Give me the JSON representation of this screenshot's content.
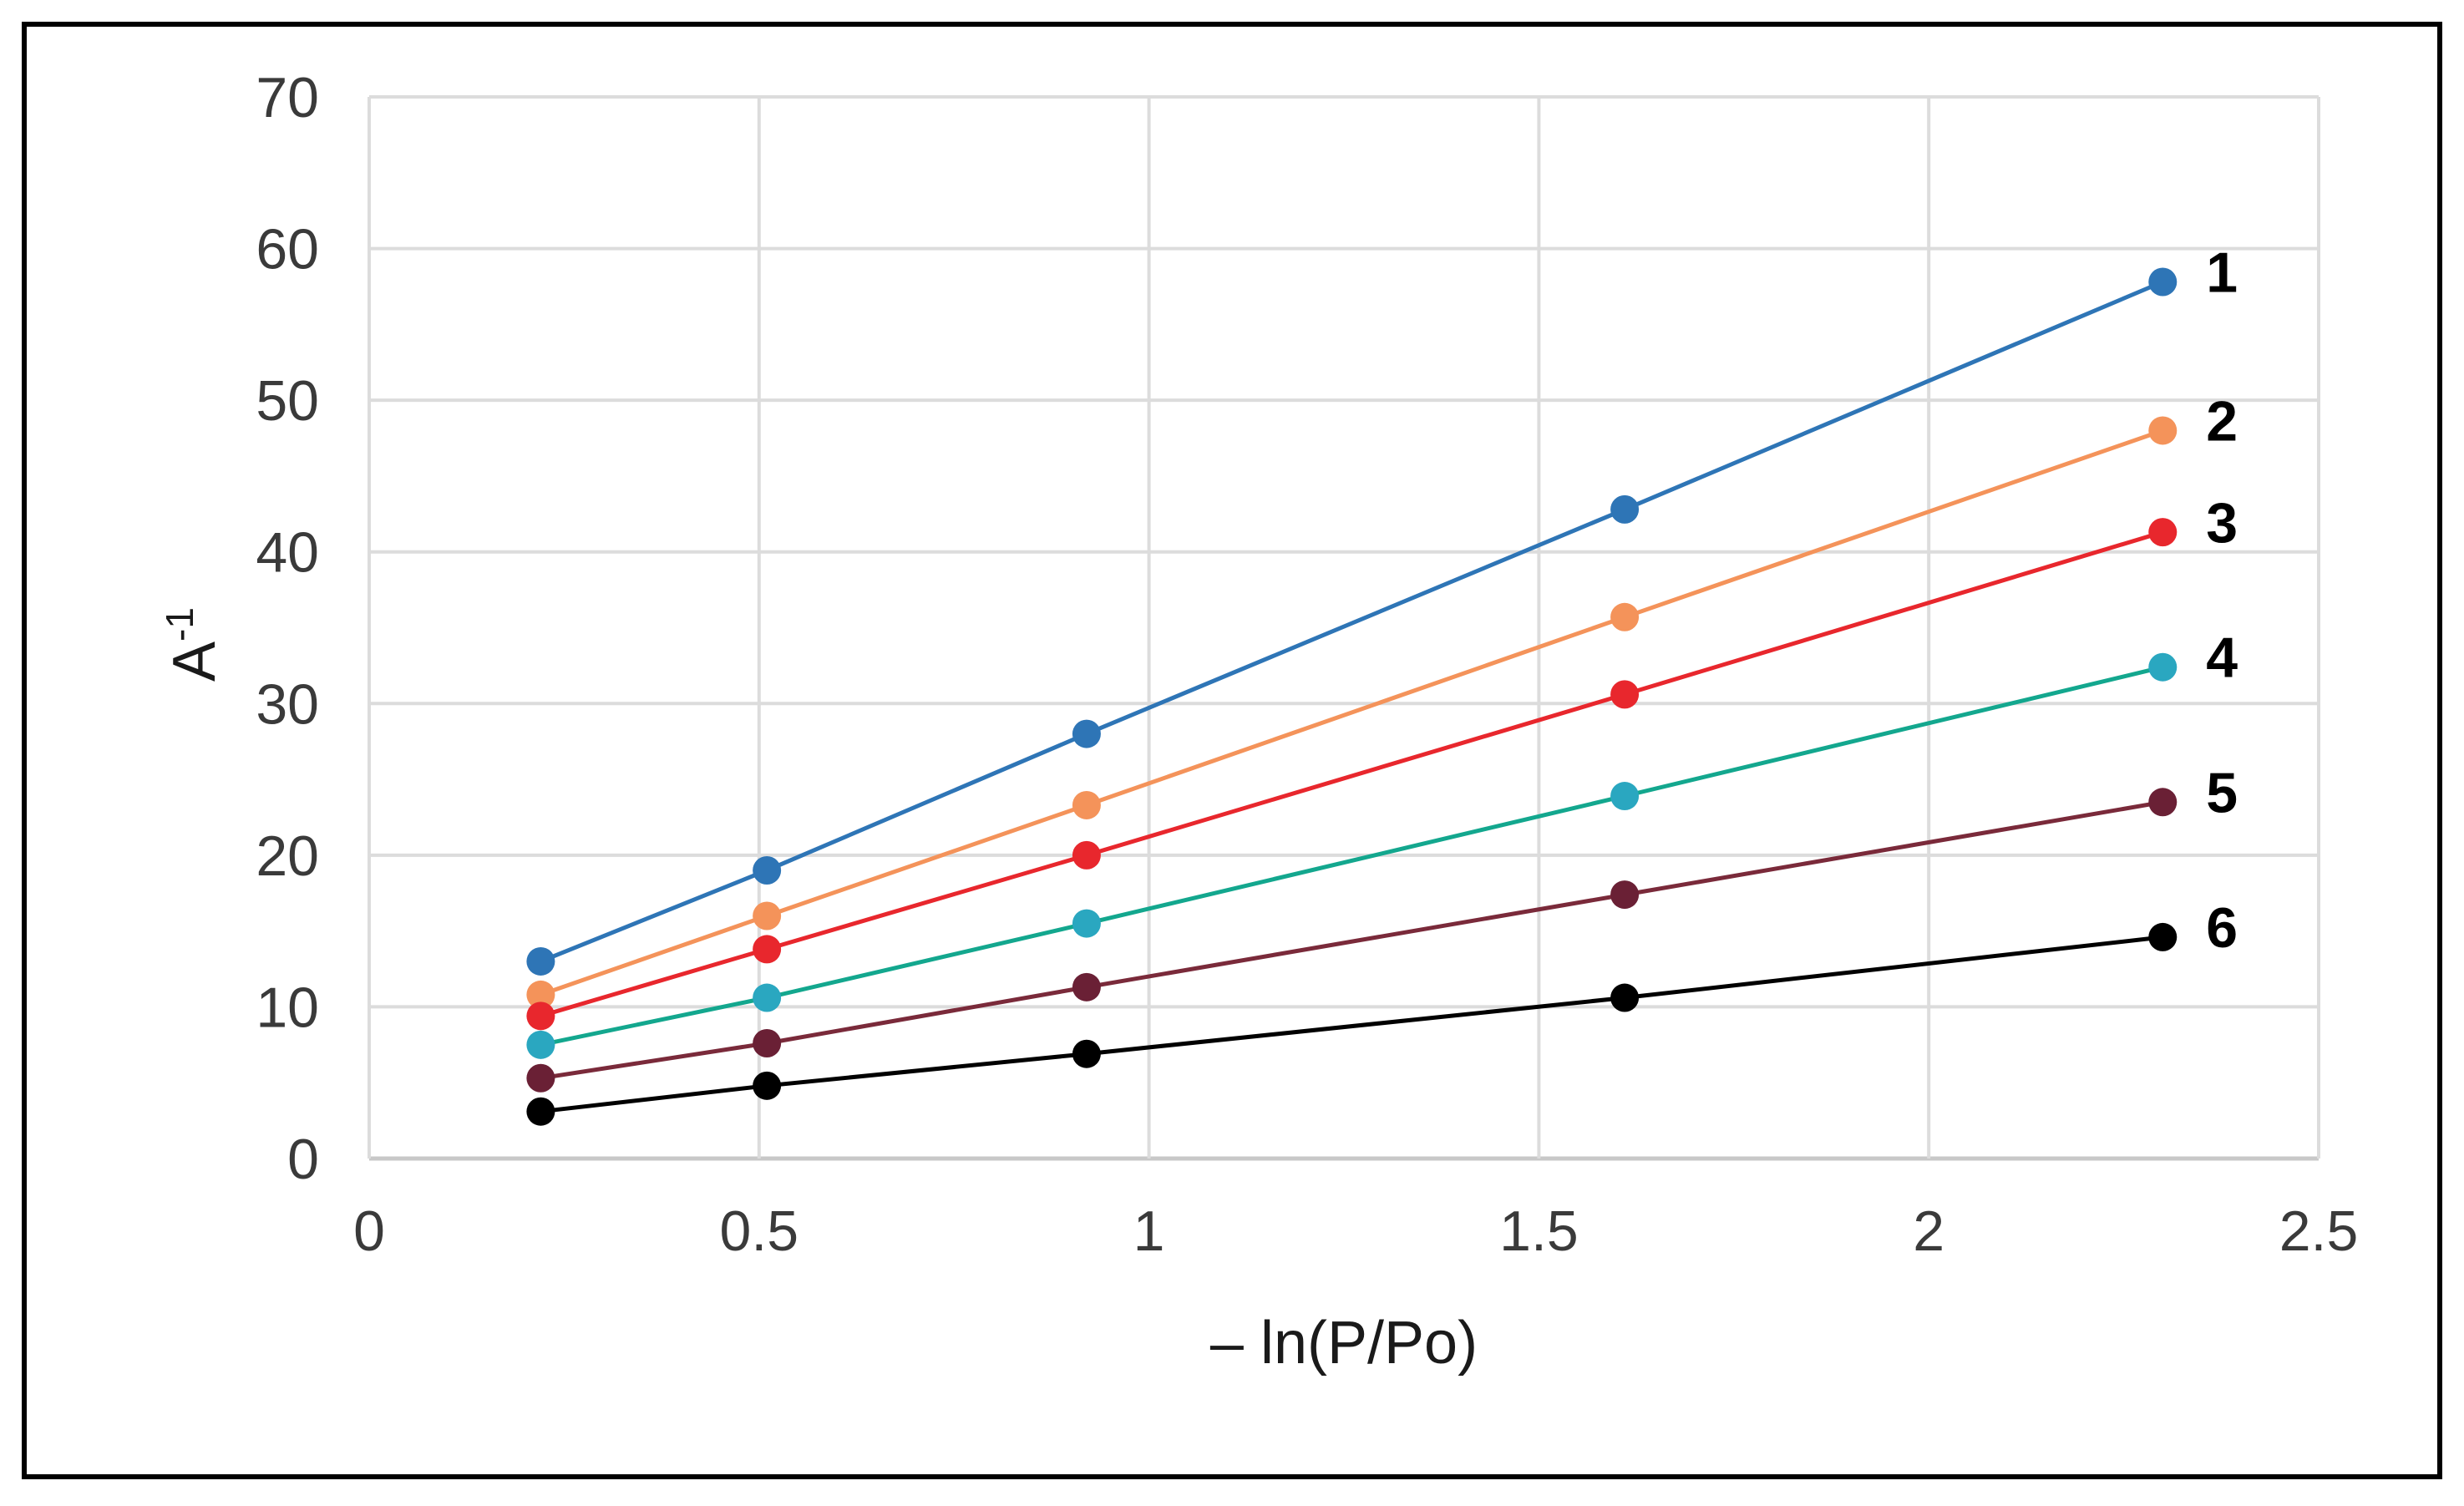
{
  "chart_data": {
    "type": "line",
    "title": "",
    "xlabel": "– ln(P/Po)",
    "ylabel_base": "A",
    "ylabel_sup": "-1",
    "xlim": [
      0,
      2.5
    ],
    "ylim": [
      0,
      70
    ],
    "xticks": [
      0,
      0.5,
      1,
      1.5,
      2,
      2.5
    ],
    "xtick_labels": [
      "0",
      "0.5",
      "1",
      "1.5",
      "2",
      "2.5"
    ],
    "yticks": [
      0,
      10,
      20,
      30,
      40,
      50,
      60,
      70
    ],
    "ytick_labels": [
      "0",
      "10",
      "20",
      "30",
      "40",
      "50",
      "60",
      "70"
    ],
    "grid": true,
    "x": [
      0.22,
      0.51,
      0.92,
      1.61,
      2.3
    ],
    "series": [
      {
        "name": "1",
        "label": "1",
        "color": "#2e75b6",
        "values": [
          13.0,
          19.0,
          28.0,
          42.8,
          57.8
        ]
      },
      {
        "name": "2",
        "label": "2",
        "color": "#f4935a",
        "values": [
          10.8,
          16.0,
          23.3,
          35.7,
          48.0
        ]
      },
      {
        "name": "3",
        "label": "3",
        "color": "#e8272d",
        "values": [
          9.4,
          13.8,
          20.0,
          30.6,
          41.3
        ]
      },
      {
        "name": "4",
        "label": "4",
        "color": "#13a78e",
        "marker_color": "#2aa7c0",
        "values": [
          7.5,
          10.6,
          15.5,
          23.9,
          32.4
        ]
      },
      {
        "name": "5",
        "label": "5",
        "color": "#7a2a3a",
        "marker_color": "#6a2035",
        "values": [
          5.3,
          7.6,
          11.3,
          17.4,
          23.5
        ]
      },
      {
        "name": "6",
        "label": "6",
        "color": "#000000",
        "values": [
          3.1,
          4.8,
          6.9,
          10.6,
          14.6
        ]
      }
    ]
  }
}
